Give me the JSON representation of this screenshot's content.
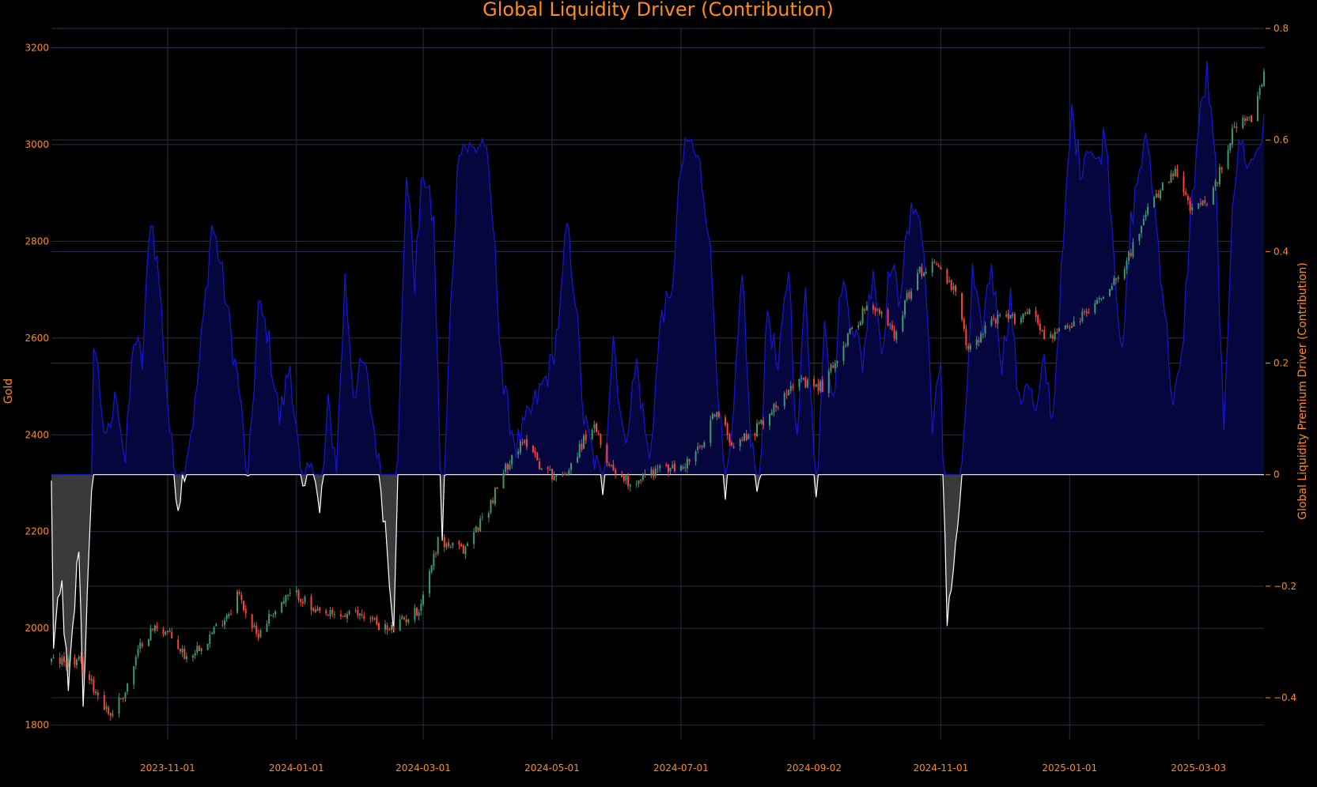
{
  "chart_data": {
    "type": "candlestick+area",
    "title": "Global Liquidity Driver (Contribution)",
    "ylabel_left": "Gold",
    "ylabel_right": "Global Liquidity Premium Driver (Contribution)",
    "yaxis_left": {
      "range": [
        1770,
        3240
      ],
      "ticks": [
        1800,
        2000,
        2200,
        2400,
        2600,
        2800,
        3000,
        3200
      ]
    },
    "yaxis_right": {
      "range": [
        -0.475,
        0.8
      ],
      "ticks": [
        -0.4,
        -0.2,
        0,
        0.2,
        0.4,
        0.6,
        0.8
      ],
      "tick_labels": [
        "−0.4",
        "−0.2",
        "0",
        "0.2",
        "0.4",
        "0.6",
        "0.8"
      ]
    },
    "xaxis": {
      "start": "2023-09-07",
      "end": "2025-04-03",
      "ticks": [
        "2023-11-01",
        "2024-01-01",
        "2024-03-01",
        "2024-05-01",
        "2024-07-01",
        "2024-09-02",
        "2024-11-01",
        "2025-01-01",
        "2025-03-03"
      ]
    },
    "gold_anchors": [
      [
        "2023-09-07",
        1932
      ],
      [
        "2023-09-20",
        1930
      ],
      [
        "2023-10-05",
        1820
      ],
      [
        "2023-10-06",
        1830
      ],
      [
        "2023-10-12",
        1870
      ],
      [
        "2023-10-20",
        1975
      ],
      [
        "2023-10-27",
        2005
      ],
      [
        "2023-11-01",
        1990
      ],
      [
        "2023-11-10",
        1940
      ],
      [
        "2023-11-20",
        1980
      ],
      [
        "2023-12-01",
        2040
      ],
      [
        "2023-12-04",
        2075
      ],
      [
        "2023-12-13",
        1985
      ],
      [
        "2023-12-20",
        2030
      ],
      [
        "2023-12-28",
        2065
      ],
      [
        "2024-01-02",
        2070
      ],
      [
        "2024-01-10",
        2030
      ],
      [
        "2024-01-20",
        2025
      ],
      [
        "2024-02-01",
        2030
      ],
      [
        "2024-02-14",
        1995
      ],
      [
        "2024-02-28",
        2040
      ],
      [
        "2024-03-08",
        2180
      ],
      [
        "2024-03-20",
        2160
      ],
      [
        "2024-04-01",
        2250
      ],
      [
        "2024-04-12",
        2360
      ],
      [
        "2024-04-20",
        2390
      ],
      [
        "2024-04-26",
        2330
      ],
      [
        "2024-05-06",
        2310
      ],
      [
        "2024-05-20",
        2420
      ],
      [
        "2024-05-28",
        2340
      ],
      [
        "2024-06-07",
        2300
      ],
      [
        "2024-06-20",
        2330
      ],
      [
        "2024-07-01",
        2330
      ],
      [
        "2024-07-12",
        2380
      ],
      [
        "2024-07-17",
        2450
      ],
      [
        "2024-07-26",
        2380
      ],
      [
        "2024-08-05",
        2410
      ],
      [
        "2024-08-15",
        2460
      ],
      [
        "2024-08-22",
        2510
      ],
      [
        "2024-09-01",
        2500
      ],
      [
        "2024-09-06",
        2500
      ],
      [
        "2024-09-15",
        2580
      ],
      [
        "2024-09-26",
        2660
      ],
      [
        "2024-10-04",
        2650
      ],
      [
        "2024-10-10",
        2610
      ],
      [
        "2024-10-20",
        2730
      ],
      [
        "2024-10-30",
        2760
      ],
      [
        "2024-11-01",
        2740
      ],
      [
        "2024-11-08",
        2690
      ],
      [
        "2024-11-14",
        2570
      ],
      [
        "2024-11-25",
        2640
      ],
      [
        "2024-12-05",
        2640
      ],
      [
        "2024-12-15",
        2660
      ],
      [
        "2024-12-20",
        2600
      ],
      [
        "2025-01-01",
        2620
      ],
      [
        "2025-01-15",
        2680
      ],
      [
        "2025-01-28",
        2760
      ],
      [
        "2025-02-10",
        2890
      ],
      [
        "2025-02-20",
        2940
      ],
      [
        "2025-02-28",
        2860
      ],
      [
        "2025-03-10",
        2900
      ],
      [
        "2025-03-20",
        3040
      ],
      [
        "2025-03-28",
        3050
      ],
      [
        "2025-04-03",
        3140
      ]
    ],
    "liquidity_anchors": [
      [
        "2023-09-07",
        -0.02
      ],
      [
        "2023-09-08",
        -0.3
      ],
      [
        "2023-09-12",
        -0.2
      ],
      [
        "2023-09-15",
        -0.4
      ],
      [
        "2023-09-20",
        -0.12
      ],
      [
        "2023-09-22",
        -0.4
      ],
      [
        "2023-09-26",
        -0.05
      ],
      [
        "2023-09-27",
        0.25
      ],
      [
        "2023-10-03",
        0.05
      ],
      [
        "2023-10-08",
        0.15
      ],
      [
        "2023-10-12",
        0.02
      ],
      [
        "2023-10-16",
        0.25
      ],
      [
        "2023-10-20",
        0.2
      ],
      [
        "2023-10-24",
        0.47
      ],
      [
        "2023-10-28",
        0.35
      ],
      [
        "2023-11-02",
        0.08
      ],
      [
        "2023-11-06",
        -0.05
      ],
      [
        "2023-11-10",
        0.04
      ],
      [
        "2023-11-14",
        0.12
      ],
      [
        "2023-11-18",
        0.28
      ],
      [
        "2023-11-22",
        0.45
      ],
      [
        "2023-11-26",
        0.38
      ],
      [
        "2023-12-01",
        0.25
      ],
      [
        "2023-12-05",
        0.15
      ],
      [
        "2023-12-09",
        -0.02
      ],
      [
        "2023-12-14",
        0.3
      ],
      [
        "2023-12-18",
        0.26
      ],
      [
        "2023-12-24",
        0.1
      ],
      [
        "2023-12-29",
        0.2
      ],
      [
        "2024-01-04",
        -0.05
      ],
      [
        "2024-01-08",
        0.05
      ],
      [
        "2024-01-12",
        -0.08
      ],
      [
        "2024-01-16",
        0.12
      ],
      [
        "2024-01-20",
        0.02
      ],
      [
        "2024-01-24",
        0.35
      ],
      [
        "2024-01-28",
        0.15
      ],
      [
        "2024-02-02",
        0.2
      ],
      [
        "2024-02-08",
        0.05
      ],
      [
        "2024-02-12",
        -0.09
      ],
      [
        "2024-02-16",
        -0.26
      ],
      [
        "2024-02-19",
        0.15
      ],
      [
        "2024-02-22",
        0.55
      ],
      [
        "2024-02-26",
        0.35
      ],
      [
        "2024-03-01",
        0.55
      ],
      [
        "2024-03-06",
        0.45
      ],
      [
        "2024-03-10",
        -0.12
      ],
      [
        "2024-03-14",
        0.3
      ],
      [
        "2024-03-18",
        0.6
      ],
      [
        "2024-03-24",
        0.58
      ],
      [
        "2024-03-30",
        0.6
      ],
      [
        "2024-04-03",
        0.45
      ],
      [
        "2024-04-08",
        0.15
      ],
      [
        "2024-04-14",
        0.05
      ],
      [
        "2024-04-22",
        0.12
      ],
      [
        "2024-05-01",
        0.2
      ],
      [
        "2024-05-05",
        0.3
      ],
      [
        "2024-05-08",
        0.45
      ],
      [
        "2024-05-12",
        0.32
      ],
      [
        "2024-05-16",
        0.1
      ],
      [
        "2024-05-20",
        0.04
      ],
      [
        "2024-05-25",
        -0.02
      ],
      [
        "2024-05-30",
        0.25
      ],
      [
        "2024-06-04",
        0.05
      ],
      [
        "2024-06-10",
        0.2
      ],
      [
        "2024-06-16",
        0.02
      ],
      [
        "2024-06-22",
        0.3
      ],
      [
        "2024-06-26",
        0.3
      ],
      [
        "2024-07-01",
        0.55
      ],
      [
        "2024-07-05",
        0.6
      ],
      [
        "2024-07-10",
        0.55
      ],
      [
        "2024-07-14",
        0.45
      ],
      [
        "2024-07-18",
        0.2
      ],
      [
        "2024-07-22",
        -0.05
      ],
      [
        "2024-07-26",
        0.1
      ],
      [
        "2024-07-30",
        0.38
      ],
      [
        "2024-08-03",
        0.05
      ],
      [
        "2024-08-07",
        -0.02
      ],
      [
        "2024-08-11",
        0.3
      ],
      [
        "2024-08-16",
        0.18
      ],
      [
        "2024-08-21",
        0.38
      ],
      [
        "2024-08-25",
        0.05
      ],
      [
        "2024-08-29",
        0.35
      ],
      [
        "2024-09-03",
        -0.05
      ],
      [
        "2024-09-07",
        0.3
      ],
      [
        "2024-09-11",
        0.12
      ],
      [
        "2024-09-15",
        0.35
      ],
      [
        "2024-09-20",
        0.28
      ],
      [
        "2024-09-25",
        0.2
      ],
      [
        "2024-09-30",
        0.38
      ],
      [
        "2024-10-04",
        0.22
      ],
      [
        "2024-10-08",
        0.38
      ],
      [
        "2024-10-12",
        0.32
      ],
      [
        "2024-10-16",
        0.42
      ],
      [
        "2024-10-20",
        0.5
      ],
      [
        "2024-10-24",
        0.4
      ],
      [
        "2024-10-28",
        0.1
      ],
      [
        "2024-11-01",
        0.18
      ],
      [
        "2024-11-04",
        -0.25
      ],
      [
        "2024-11-08",
        -0.14
      ],
      [
        "2024-11-12",
        0.05
      ],
      [
        "2024-11-16",
        0.36
      ],
      [
        "2024-11-20",
        0.25
      ],
      [
        "2024-11-25",
        0.38
      ],
      [
        "2024-11-30",
        0.2
      ],
      [
        "2024-12-04",
        0.32
      ],
      [
        "2024-12-08",
        0.12
      ],
      [
        "2024-12-12",
        0.18
      ],
      [
        "2024-12-16",
        0.1
      ],
      [
        "2024-12-20",
        0.2
      ],
      [
        "2024-12-24",
        0.1
      ],
      [
        "2024-12-28",
        0.35
      ],
      [
        "2025-01-02",
        0.65
      ],
      [
        "2025-01-06",
        0.55
      ],
      [
        "2025-01-10",
        0.6
      ],
      [
        "2025-01-14",
        0.55
      ],
      [
        "2025-01-18",
        0.62
      ],
      [
        "2025-01-22",
        0.4
      ],
      [
        "2025-01-26",
        0.2
      ],
      [
        "2025-01-30",
        0.45
      ],
      [
        "2025-02-03",
        0.55
      ],
      [
        "2025-02-07",
        0.6
      ],
      [
        "2025-02-11",
        0.45
      ],
      [
        "2025-02-15",
        0.3
      ],
      [
        "2025-02-19",
        0.12
      ],
      [
        "2025-02-23",
        0.2
      ],
      [
        "2025-02-27",
        0.45
      ],
      [
        "2025-03-03",
        0.62
      ],
      [
        "2025-03-07",
        0.72
      ],
      [
        "2025-03-11",
        0.55
      ],
      [
        "2025-03-15",
        0.05
      ],
      [
        "2025-03-19",
        0.5
      ],
      [
        "2025-03-23",
        0.6
      ],
      [
        "2025-03-27",
        0.55
      ],
      [
        "2025-04-03",
        0.62
      ]
    ],
    "colors": {
      "up": "#3d9970",
      "down": "#ff4136",
      "area_positive_fill": "#06063f",
      "area_positive_line": "#1717d6",
      "area_negative_fill": "#3a3a3a",
      "area_negative_line": "#ffffff",
      "title": "#ff8c1a",
      "tick": "#ff8c1a",
      "grid": "#26304d"
    },
    "grid": true,
    "legend": "none"
  }
}
